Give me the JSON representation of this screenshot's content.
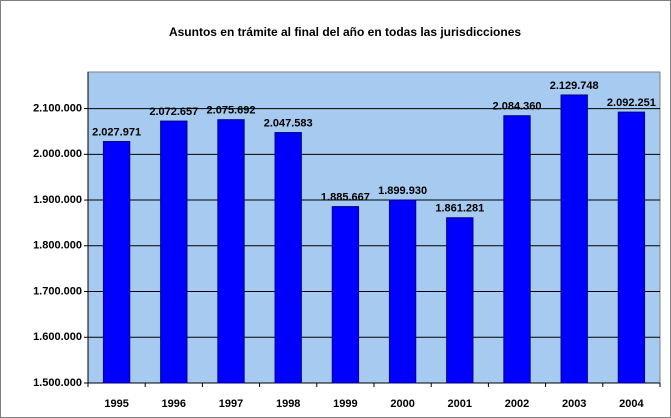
{
  "chart_data": {
    "type": "bar",
    "title": "Asuntos en trámite al final del año en todas las jurisdicciones",
    "categories": [
      "1995",
      "1996",
      "1997",
      "1998",
      "1999",
      "2000",
      "2001",
      "2002",
      "2003",
      "2004"
    ],
    "values": [
      2027971,
      2072657,
      2075692,
      2047583,
      1885667,
      1899930,
      1861281,
      2084360,
      2129748,
      2092251
    ],
    "value_labels": [
      "2.027.971",
      "2.072.657",
      "2.075.692",
      "2.047.583",
      "1.885.667",
      "1.899.930",
      "1.861.281",
      "2.084.360",
      "2.129.748",
      "2.092.251"
    ],
    "color": "#0000ff",
    "ylim": [
      1500000,
      2180000
    ],
    "yticks": [
      {
        "value": 1500000,
        "label": "1.500.000"
      },
      {
        "value": 1600000,
        "label": "1.600.000"
      },
      {
        "value": 1700000,
        "label": "1.700.000"
      },
      {
        "value": 1800000,
        "label": "1.800.000"
      },
      {
        "value": 1900000,
        "label": "1.900.000"
      },
      {
        "value": 2000000,
        "label": "2.000.000"
      },
      {
        "value": 2100000,
        "label": "2.100.000"
      }
    ],
    "grid": true
  }
}
